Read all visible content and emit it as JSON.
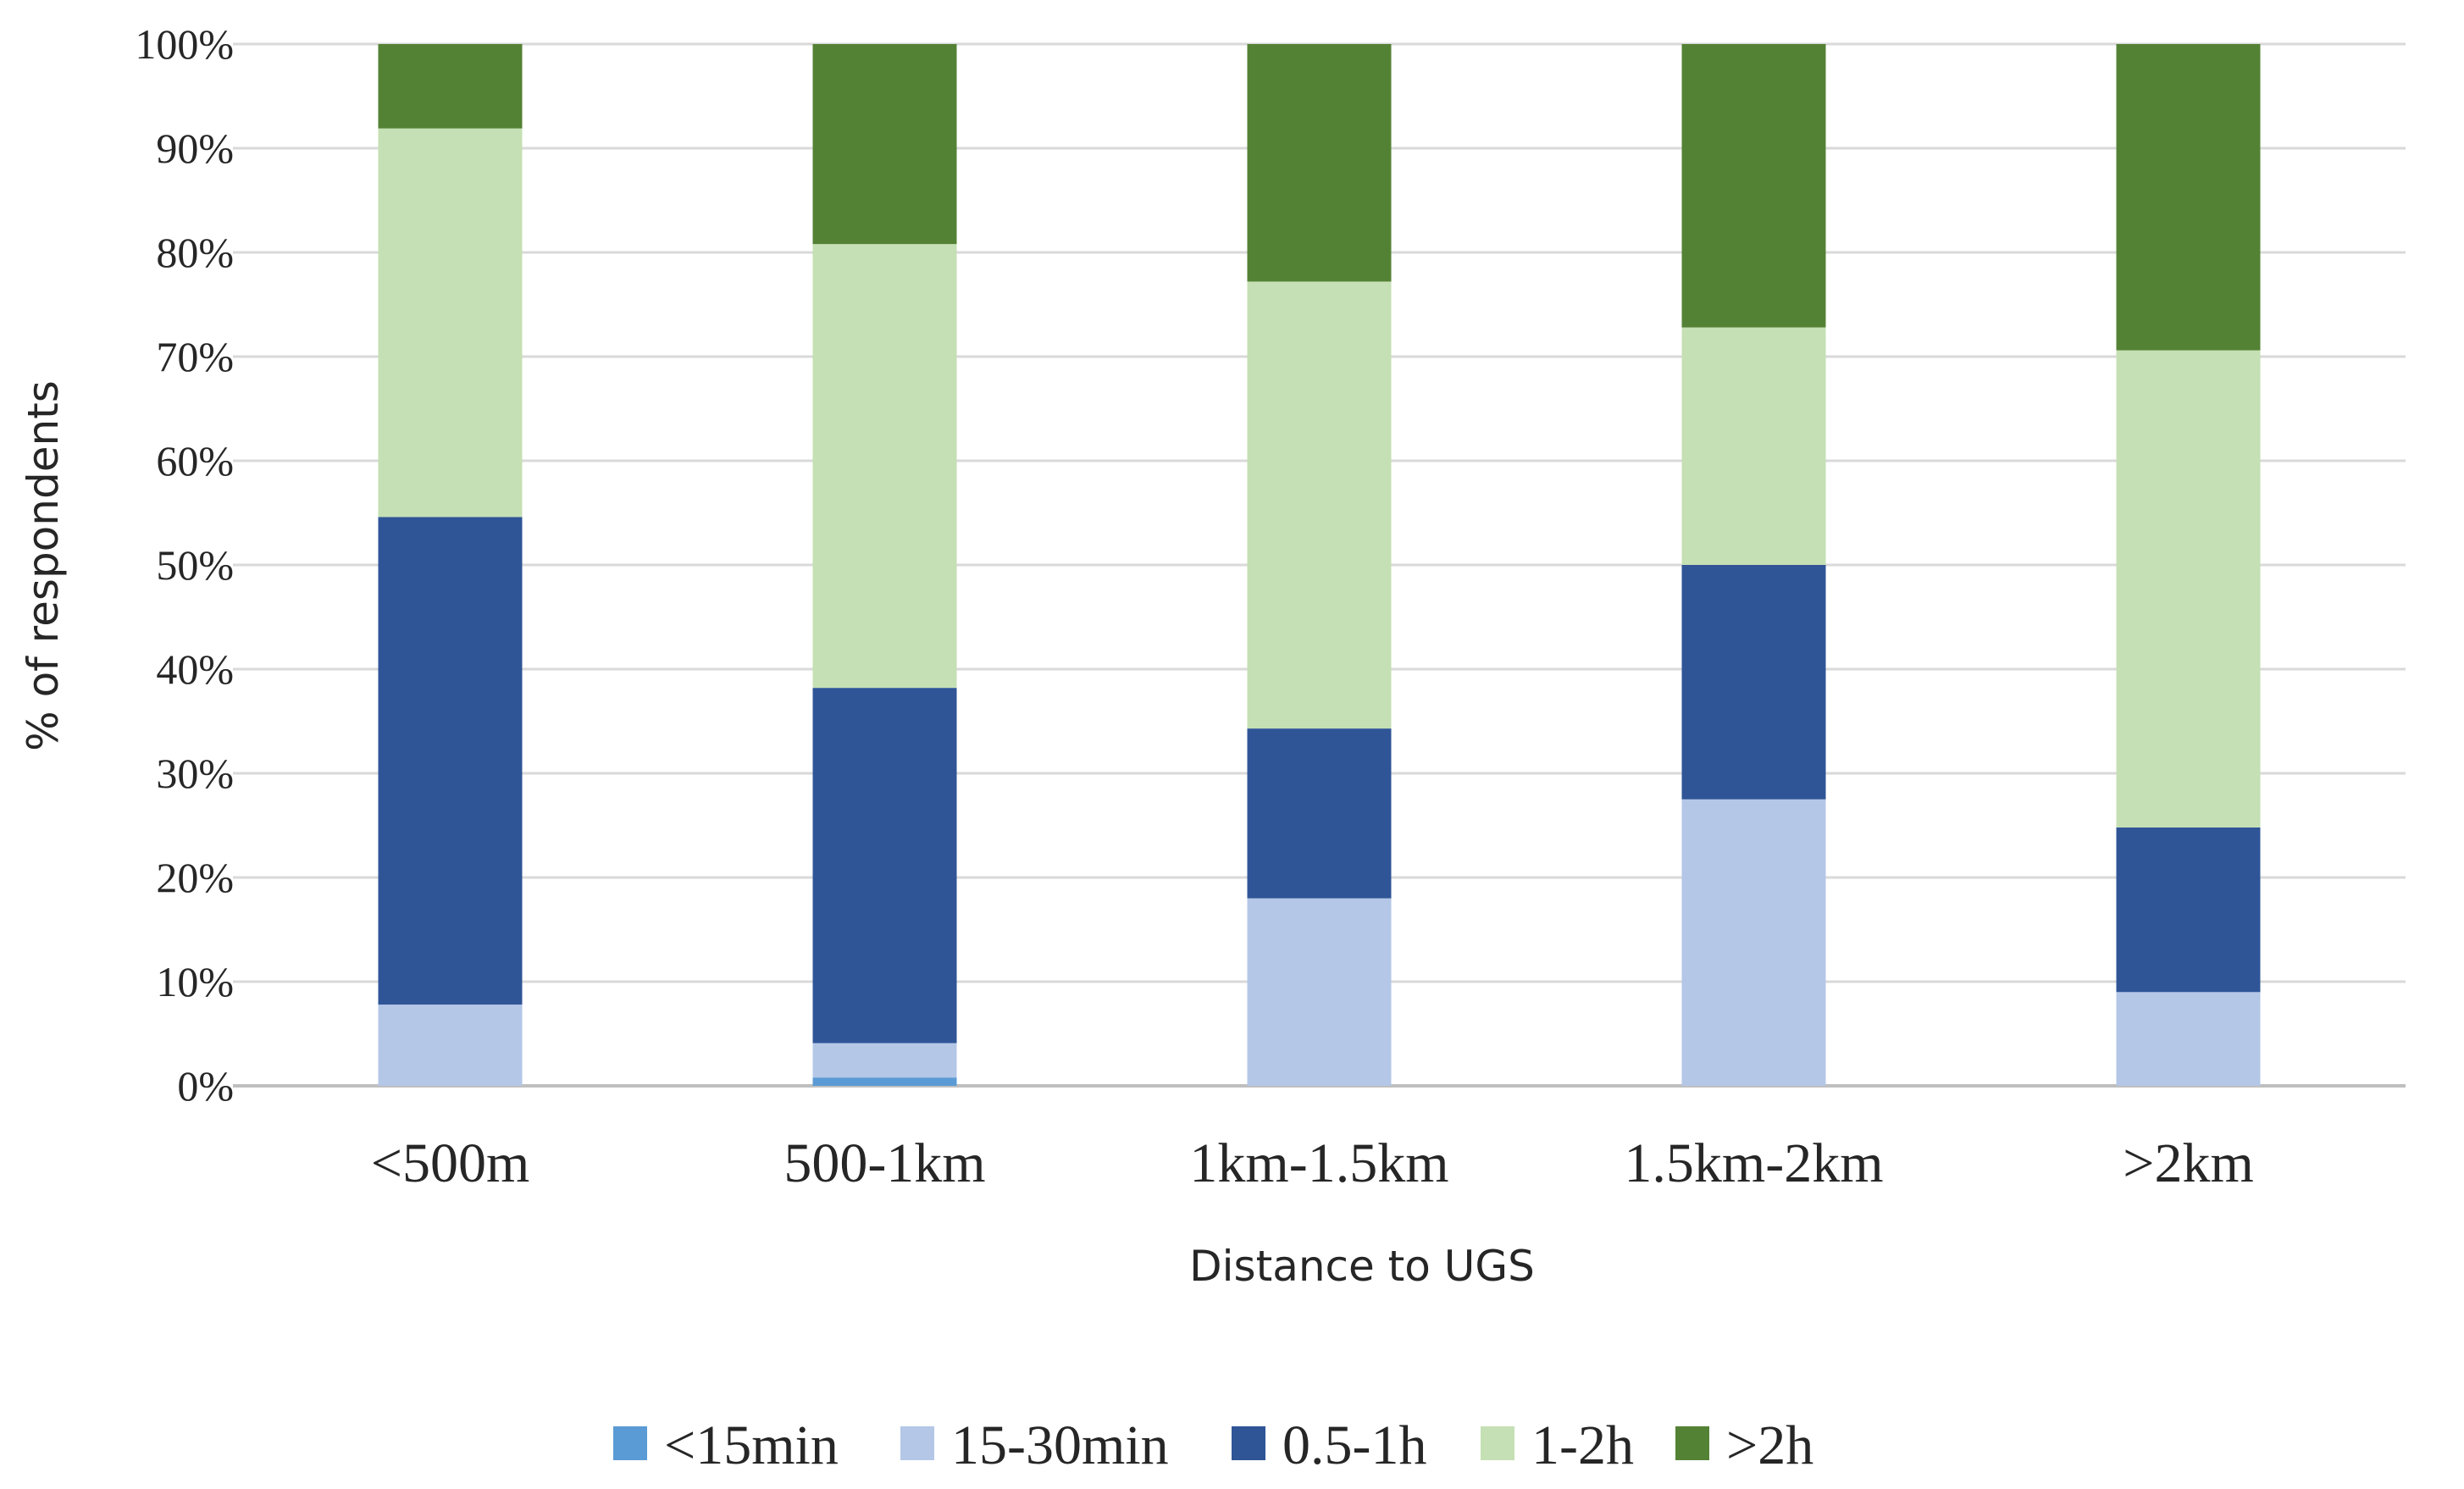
{
  "chart_data": {
    "type": "bar",
    "stacked": true,
    "categories": [
      "<500m",
      "500-1km",
      "1km-1.5km",
      "1.5km-2km",
      ">2km"
    ],
    "series": [
      {
        "name": "<15min",
        "color": "#5b9bd5",
        "values": [
          0,
          0.8,
          0,
          0,
          0
        ]
      },
      {
        "name": "15-30min",
        "color": "#b4c7e7",
        "values": [
          7.8,
          3.3,
          18.0,
          27.5,
          9.0
        ]
      },
      {
        "name": "0.5-1h",
        "color": "#2f5597",
        "values": [
          46.8,
          34.1,
          16.3,
          22.5,
          15.8
        ]
      },
      {
        "name": "1-2h",
        "color": "#c5e0b4",
        "values": [
          37.3,
          42.6,
          42.9,
          22.8,
          45.8
        ]
      },
      {
        "name": ">2h",
        "color": "#548235",
        "values": [
          8.1,
          19.2,
          22.8,
          27.2,
          29.4
        ]
      }
    ],
    "xlabel": "Distance to UGS",
    "ylabel": "% of respondents",
    "ylim": [
      0,
      100
    ],
    "yticks": [
      "0%",
      "10%",
      "20%",
      "30%",
      "40%",
      "50%",
      "60%",
      "70%",
      "80%",
      "90%",
      "100%"
    ],
    "grid": true,
    "legend_position": "bottom"
  }
}
